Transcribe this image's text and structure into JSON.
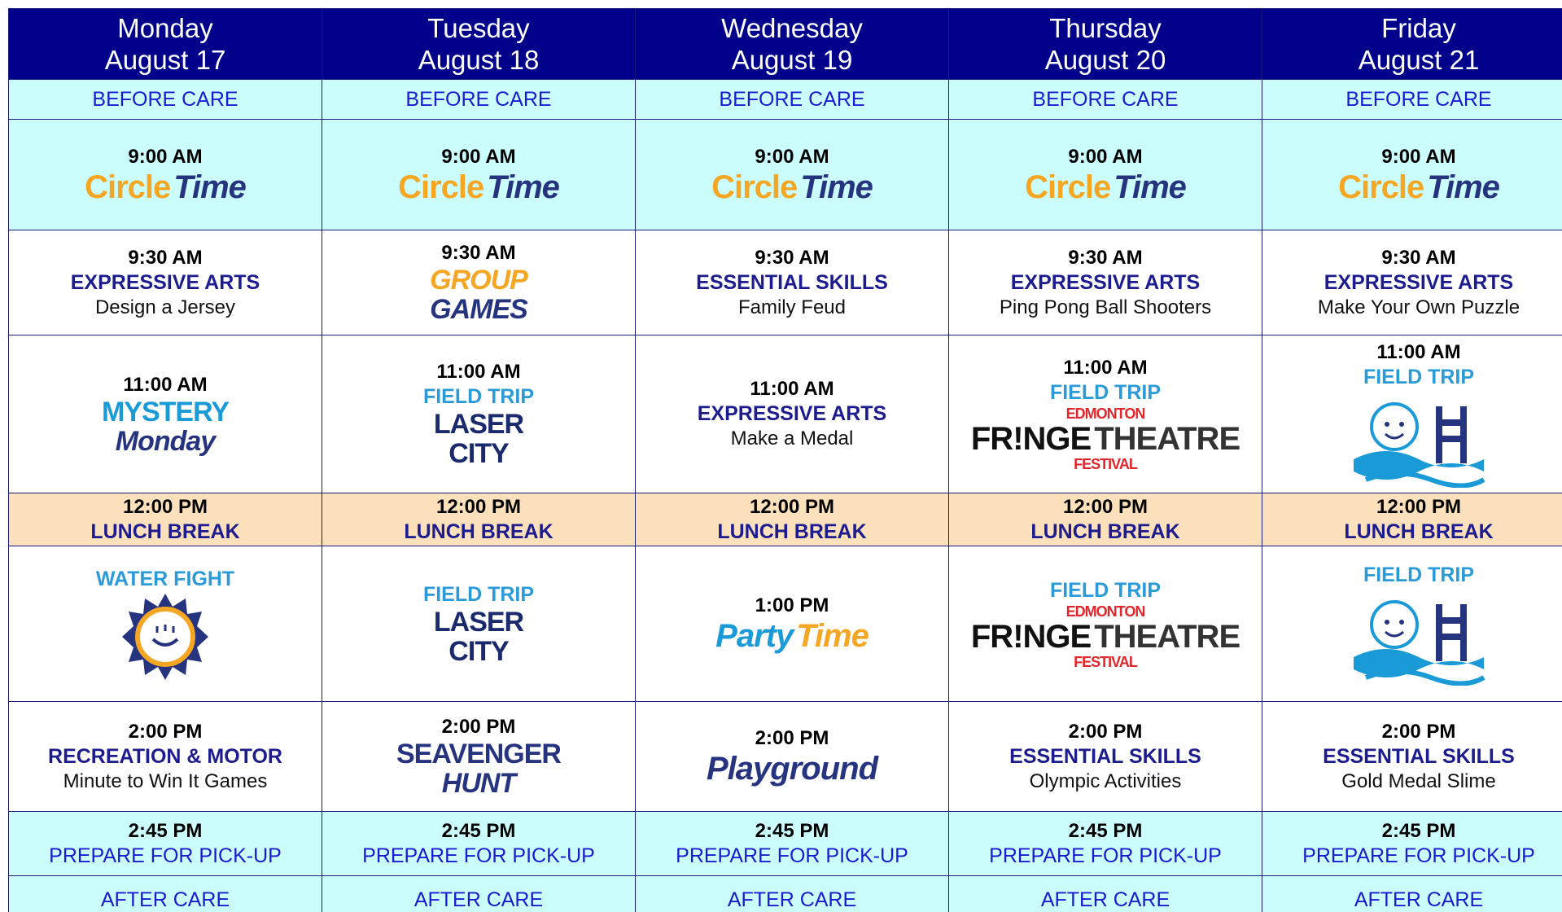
{
  "header": {
    "days": [
      {
        "name": "Monday",
        "date": "August 17"
      },
      {
        "name": "Tuesday",
        "date": "August 18"
      },
      {
        "name": "Wednesday",
        "date": "August 19"
      },
      {
        "name": "Thursday",
        "date": "August 20"
      },
      {
        "name": "Friday",
        "date": "August 21"
      }
    ],
    "background": "#00008b"
  },
  "rows": [
    {
      "background": "#ccfdfd",
      "cells": [
        {
          "label": "BEFORE CARE"
        },
        {
          "label": "BEFORE CARE"
        },
        {
          "label": "BEFORE CARE"
        },
        {
          "label": "BEFORE CARE"
        },
        {
          "label": "BEFORE CARE"
        }
      ]
    },
    {
      "background": "#ccfdfd",
      "cells": [
        {
          "time": "9:00 AM",
          "logo": [
            [
              {
                "text": "Circle",
                "color": "#f5a623"
              },
              {
                "text": "Time",
                "color": "#26337e",
                "italic": true
              }
            ]
          ]
        },
        {
          "time": "9:00 AM",
          "logo": [
            [
              {
                "text": "Circle",
                "color": "#f5a623"
              },
              {
                "text": "Time",
                "color": "#26337e",
                "italic": true
              }
            ]
          ]
        },
        {
          "time": "9:00 AM",
          "logo": [
            [
              {
                "text": "Circle",
                "color": "#f5a623"
              },
              {
                "text": "Time",
                "color": "#26337e",
                "italic": true
              }
            ]
          ]
        },
        {
          "time": "9:00 AM",
          "logo": [
            [
              {
                "text": "Circle",
                "color": "#f5a623"
              },
              {
                "text": "Time",
                "color": "#26337e",
                "italic": true
              }
            ]
          ]
        },
        {
          "time": "9:00 AM",
          "logo": [
            [
              {
                "text": "Circle",
                "color": "#f5a623"
              },
              {
                "text": "Time",
                "color": "#26337e",
                "italic": true
              }
            ]
          ]
        }
      ]
    },
    {
      "background": "#ffffff",
      "cells": [
        {
          "time": "9:30 AM",
          "category": "EXPRESSIVE ARTS",
          "color": "#1c1c8f",
          "activity": "Design a Jersey"
        },
        {
          "time": "9:30 AM",
          "logo": [
            [
              {
                "text": "GROUP",
                "color": "#f5a623",
                "italic": true
              }
            ],
            [
              {
                "text": "GAMES",
                "color": "#26337e",
                "italic": true
              }
            ]
          ]
        },
        {
          "time": "9:30 AM",
          "category": "ESSENTIAL SKILLS",
          "color": "#1c1c8f",
          "activity": "Family Feud"
        },
        {
          "time": "9:30 AM",
          "category": "EXPRESSIVE ARTS",
          "color": "#1c1c8f",
          "activity": "Ping Pong Ball Shooters"
        },
        {
          "time": "9:30 AM",
          "category": "EXPRESSIVE ARTS",
          "color": "#1c1c8f",
          "activity": "Make Your Own Puzzle"
        }
      ]
    },
    {
      "background": "#ffffff",
      "cells": [
        {
          "time": "11:00 AM",
          "logo": [
            [
              {
                "text": "MYSTERY",
                "color": "#1a9bd7"
              }
            ],
            [
              {
                "text": "Monday",
                "color": "#26337e",
                "italic": true
              }
            ]
          ]
        },
        {
          "time": "11:00 AM",
          "category": "FIELD TRIP",
          "color": "#2b9bd8",
          "logo": [
            [
              {
                "text": "LASER",
                "color": "#1a2a6c"
              }
            ],
            [
              {
                "text": "CITY",
                "color": "#1a2a6c"
              }
            ]
          ]
        },
        {
          "time": "11:00 AM",
          "category": "EXPRESSIVE ARTS",
          "color": "#1c1c8f",
          "activity": "Make a Medal"
        },
        {
          "time": "11:00 AM",
          "category": "FIELD TRIP",
          "color": "#2b9bd8",
          "logo": [
            [
              {
                "text": "EDMONTON",
                "color": "#e0262b"
              }
            ],
            [
              {
                "text": "FR!NGE",
                "color": "#111111"
              },
              {
                "text": "THEATRE",
                "color": "#333333"
              }
            ],
            [
              {
                "text": "FESTIVAL",
                "color": "#e0262b"
              }
            ]
          ]
        },
        {
          "time": "11:00 AM",
          "category": "FIELD TRIP",
          "color": "#2b9bd8"
        }
      ]
    },
    {
      "background": "#fde0bc",
      "cells": [
        {
          "time": "12:00 PM",
          "category": "LUNCH BREAK",
          "color": "#1c1c8f"
        },
        {
          "time": "12:00 PM",
          "category": "LUNCH BREAK",
          "color": "#1c1c8f"
        },
        {
          "time": "12:00 PM",
          "category": "LUNCH BREAK",
          "color": "#1c1c8f"
        },
        {
          "time": "12:00 PM",
          "category": "LUNCH BREAK",
          "color": "#1c1c8f"
        },
        {
          "time": "12:00 PM",
          "category": "LUNCH BREAK",
          "color": "#1c1c8f"
        }
      ]
    },
    {
      "background": "#ffffff",
      "cells": [
        {
          "category": "WATER FIGHT",
          "color": "#2b9bd8"
        },
        {
          "category": "FIELD TRIP",
          "color": "#2b9bd8",
          "logo": [
            [
              {
                "text": "LASER",
                "color": "#1a2a6c"
              }
            ],
            [
              {
                "text": "CITY",
                "color": "#1a2a6c"
              }
            ]
          ]
        },
        {
          "time": "1:00 PM",
          "logo": [
            [
              {
                "text": "Party",
                "color": "#1a9bd7",
                "italic": true
              },
              {
                "text": "Time",
                "color": "#f5a623",
                "italic": true
              }
            ]
          ]
        },
        {
          "category": "FIELD TRIP",
          "color": "#2b9bd8",
          "logo": [
            [
              {
                "text": "EDMONTON",
                "color": "#e0262b"
              }
            ],
            [
              {
                "text": "FR!NGE",
                "color": "#111111"
              },
              {
                "text": "THEATRE",
                "color": "#333333"
              }
            ],
            [
              {
                "text": "FESTIVAL",
                "color": "#e0262b"
              }
            ]
          ]
        },
        {
          "category": "FIELD TRIP",
          "color": "#2b9bd8"
        }
      ]
    },
    {
      "background": "#ffffff",
      "cells": [
        {
          "time": "2:00 PM",
          "category": "RECREATION & MOTOR",
          "color": "#1c1c8f",
          "activity": "Minute to Win It Games"
        },
        {
          "time": "2:00 PM",
          "logo": [
            [
              {
                "text": "SEAVENGER",
                "color": "#26337e"
              }
            ],
            [
              {
                "text": "HUNT",
                "color": "#26337e",
                "italic": true
              }
            ]
          ]
        },
        {
          "time": "2:00 PM",
          "logo": [
            [
              {
                "text": "Playground",
                "color": "#26337e",
                "italic": true
              }
            ]
          ]
        },
        {
          "time": "2:00 PM",
          "category": "ESSENTIAL SKILLS",
          "color": "#1c1c8f",
          "activity": "Olympic Activities"
        },
        {
          "time": "2:00 PM",
          "category": "ESSENTIAL SKILLS",
          "color": "#1c1c8f",
          "activity": "Gold Medal Slime"
        }
      ]
    },
    {
      "background": "#ccfdfd",
      "cells": [
        {
          "time": "2:45 PM",
          "label": "PREPARE FOR PICK-UP"
        },
        {
          "time": "2:45 PM",
          "label": "PREPARE FOR PICK-UP"
        },
        {
          "time": "2:45 PM",
          "label": "PREPARE FOR PICK-UP"
        },
        {
          "time": "2:45 PM",
          "label": "PREPARE FOR PICK-UP"
        },
        {
          "time": "2:45 PM",
          "label": "PREPARE FOR PICK-UP"
        }
      ]
    },
    {
      "background": "#ccfdfd",
      "cells": [
        {
          "label": "AFTER CARE"
        },
        {
          "label": "AFTER CARE"
        },
        {
          "label": "AFTER CARE"
        },
        {
          "label": "AFTER CARE"
        },
        {
          "label": "AFTER CARE"
        }
      ]
    }
  ]
}
